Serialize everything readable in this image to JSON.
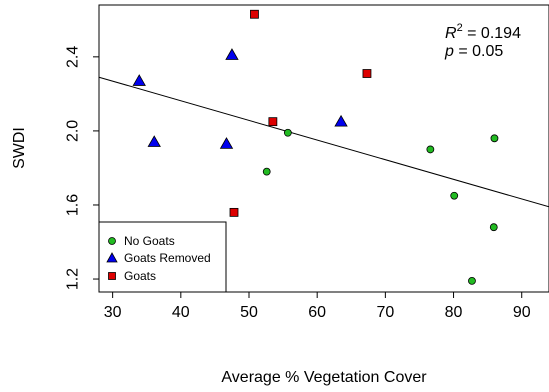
{
  "chart_data": {
    "type": "scatter",
    "xlabel": "Average % Vegetation Cover",
    "ylabel": "SWDI",
    "xlim": [
      28,
      94
    ],
    "ylim": [
      1.13,
      2.68
    ],
    "xticks": [
      30,
      40,
      50,
      60,
      70,
      80,
      90
    ],
    "yticks": [
      1.2,
      1.6,
      2.0,
      2.4
    ],
    "xtick_labels": [
      "30",
      "40",
      "50",
      "60",
      "70",
      "80",
      "90"
    ],
    "ytick_labels": [
      "1.2",
      "1.6",
      "2.0",
      "2.4"
    ],
    "grid": false,
    "legend_position": "bottom-left",
    "series": [
      {
        "name": "No Goats",
        "marker": "circle",
        "color": "#22bb22",
        "points": [
          [
            52.6,
            1.78
          ],
          [
            55.7,
            1.99
          ],
          [
            76.6,
            1.9
          ],
          [
            80.1,
            1.65
          ],
          [
            86.0,
            1.96
          ],
          [
            85.9,
            1.48
          ],
          [
            82.7,
            1.19
          ]
        ]
      },
      {
        "name": "Goats Removed",
        "marker": "triangle",
        "color": "#0000ee",
        "points": [
          [
            33.9,
            2.27
          ],
          [
            36.1,
            1.94
          ],
          [
            46.7,
            1.93
          ],
          [
            47.5,
            2.41
          ],
          [
            63.5,
            2.05
          ]
        ]
      },
      {
        "name": "Goats",
        "marker": "square",
        "color": "#dd0000",
        "points": [
          [
            50.8,
            2.63
          ],
          [
            53.5,
            2.05
          ],
          [
            67.3,
            2.31
          ],
          [
            47.8,
            1.56
          ]
        ]
      }
    ],
    "regression": {
      "x": [
        28,
        94
      ],
      "y": [
        2.29,
        1.59
      ]
    },
    "annotation": {
      "r2_label": "R",
      "r2_sup": "2",
      "r2_value": " = 0.194",
      "p_label": "p",
      "p_value": " = 0.05"
    }
  }
}
